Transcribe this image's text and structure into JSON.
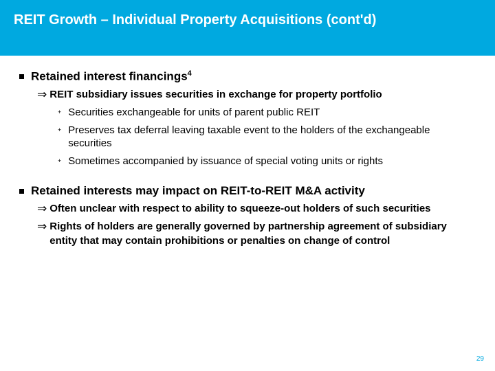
{
  "colors": {
    "title_bg": "#00a9e0",
    "title_text": "#ffffff",
    "body_text": "#000000",
    "page_num": "#00a9e0",
    "slide_bg": "#ffffff"
  },
  "typography": {
    "title_fontsize": 20,
    "lvl1_fontsize": 17,
    "lvl2_fontsize": 15,
    "lvl3_fontsize": 15,
    "page_num_fontsize": 10
  },
  "title": "REIT Growth – Individual Property Acquisitions (cont'd)",
  "page_number": "29",
  "bullets": [
    {
      "text": "Retained interest financings",
      "sup": "4",
      "children": [
        {
          "text": "REIT subsidiary issues securities in exchange for property portfolio",
          "children": [
            {
              "text": "Securities exchangeable for units of parent public REIT"
            },
            {
              "text": "Preserves tax deferral leaving taxable event to the holders of the exchangeable securities"
            },
            {
              "text": "Sometimes accompanied by issuance of special voting units or rights"
            }
          ]
        }
      ]
    },
    {
      "text": "Retained interests may impact on REIT-to-REIT M&A activity",
      "sup": "",
      "children": [
        {
          "text": "Often unclear with respect to ability to squeeze-out holders of such securities",
          "children": []
        },
        {
          "text": "Rights of holders are generally governed by partnership agreement of subsidiary entity that may contain prohibitions or penalties on change of control",
          "children": []
        }
      ]
    }
  ]
}
